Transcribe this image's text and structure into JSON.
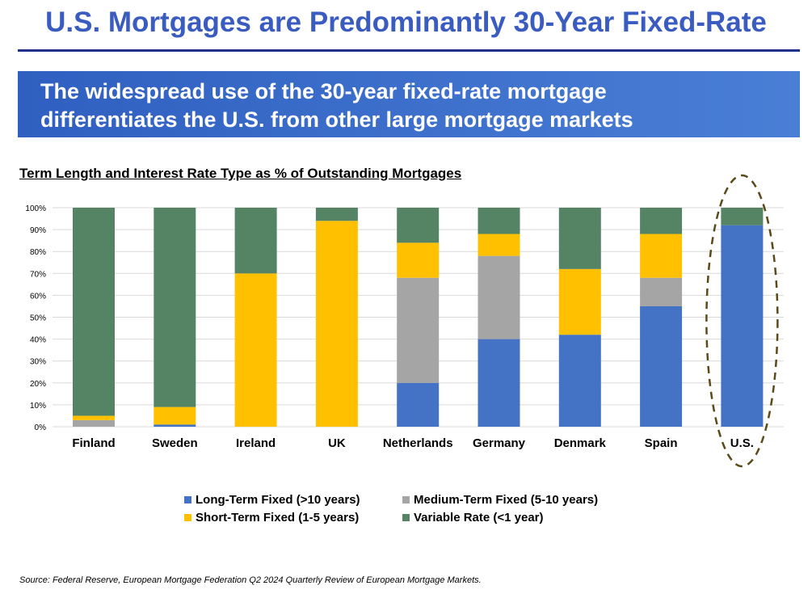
{
  "title": "U.S. Mortgages are Predominantly 30-Year Fixed-Rate",
  "banner": {
    "line1": "The widespread use of the 30-year fixed-rate mortgage",
    "line2": "differentiates the U.S. from other large mortgage markets"
  },
  "source": "Source: Federal Reserve, European Mortgage Federation Q2 2024 Quarterly Review of European Mortgage Markets.",
  "chart_data": {
    "type": "bar",
    "stacked": true,
    "title": "Term Length and Interest Rate Type as % of Outstanding Mortgages",
    "categories": [
      "Finland",
      "Sweden",
      "Ireland",
      "UK",
      "Netherlands",
      "Germany",
      "Denmark",
      "Spain",
      "U.S."
    ],
    "series": [
      {
        "name": "Long-Term Fixed (>10 years)",
        "color": "#4472c4",
        "values": [
          0,
          1,
          0,
          0,
          20,
          40,
          42,
          55,
          92
        ]
      },
      {
        "name": "Medium-Term Fixed (5-10 years)",
        "color": "#a5a5a5",
        "values": [
          3,
          0,
          0,
          0,
          48,
          38,
          0,
          13,
          0
        ]
      },
      {
        "name": "Short-Term Fixed (1-5 years)",
        "color": "#ffc000",
        "values": [
          2,
          8,
          70,
          94,
          16,
          10,
          30,
          20,
          0
        ]
      },
      {
        "name": "Variable Rate (<1 year)",
        "color": "#548464",
        "values": [
          95,
          91,
          30,
          6,
          16,
          12,
          28,
          12,
          8
        ]
      }
    ],
    "ylim": [
      0,
      100
    ],
    "yticks": [
      "0%",
      "10%",
      "20%",
      "30%",
      "40%",
      "50%",
      "60%",
      "70%",
      "80%",
      "90%",
      "100%"
    ],
    "grid": true,
    "legend": "bottom",
    "highlight": "U.S."
  }
}
